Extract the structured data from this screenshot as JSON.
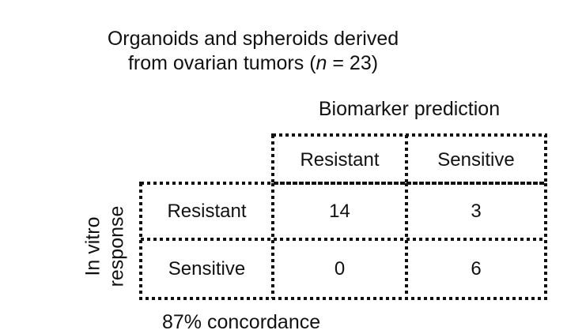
{
  "chart_data": {
    "type": "table",
    "title_line1": "Organoids and spheroids derived",
    "title_line2_prefix": "from ovarian tumors (",
    "title_n_symbol": "n",
    "title_line2_suffix": " = 23)",
    "column_header": "Biomarker prediction",
    "row_header_line1": "In vitro",
    "row_header_line2": "response",
    "columns": [
      "Resistant",
      "Sensitive"
    ],
    "rows": [
      {
        "label": "Resistant",
        "values": [
          "14",
          "3"
        ]
      },
      {
        "label": "Sensitive",
        "values": [
          "0",
          "6"
        ]
      }
    ],
    "footer": "87% concordance"
  }
}
